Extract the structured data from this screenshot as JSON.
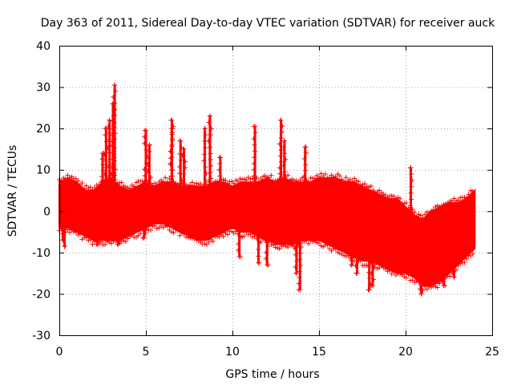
{
  "chart_data": {
    "type": "scatter",
    "title": "Day 363 of 2011, Sidereal Day-to-day VTEC variation (SDTVAR) for receiver auck",
    "xlabel": "GPS time / hours",
    "ylabel": "SDTVAR / TECUs",
    "xlim": [
      0,
      25
    ],
    "ylim": [
      -30,
      40
    ],
    "xticks": [
      0,
      5,
      10,
      15,
      20,
      25
    ],
    "yticks": [
      -30,
      -20,
      -10,
      0,
      10,
      20,
      30,
      40
    ],
    "xtick_labels": [
      "0",
      "5",
      "10",
      "15",
      "20",
      "25"
    ],
    "ytick_labels": [
      "-30",
      "-20",
      "-10",
      "0",
      "10",
      "20",
      "30",
      "40"
    ],
    "grid": true,
    "marker": "+",
    "series": [
      {
        "name": "SDTVAR",
        "color": "#ff0000",
        "envelope": {
          "x": [
            0,
            0.5,
            1,
            1.5,
            2,
            2.5,
            3,
            3.5,
            4,
            4.5,
            5,
            5.5,
            6,
            6.5,
            7,
            7.5,
            8,
            8.5,
            9,
            9.5,
            10,
            10.5,
            11,
            11.5,
            12,
            12.5,
            13,
            13.5,
            14,
            14.5,
            15,
            15.5,
            16,
            16.5,
            17,
            17.5,
            18,
            18.5,
            19,
            19.5,
            20,
            20.5,
            21,
            21.5,
            22,
            22.5,
            23,
            23.5,
            24
          ],
          "upper": [
            7,
            8,
            7,
            5,
            5,
            7,
            8,
            6,
            5,
            6,
            7,
            6,
            7,
            7,
            6,
            6,
            6,
            6,
            7,
            7,
            6,
            7,
            7,
            7,
            8,
            7,
            8,
            7,
            7,
            7,
            8,
            8,
            8,
            7,
            7,
            6,
            5,
            4,
            3,
            3,
            1,
            -1,
            -2,
            0,
            1,
            2,
            2,
            3,
            5
          ],
          "lower": [
            -4,
            -4,
            -5,
            -6,
            -7,
            -7,
            -7,
            -7,
            -6,
            -5,
            -4,
            -3,
            -3,
            -4,
            -5,
            -6,
            -7,
            -7,
            -6,
            -5,
            -4,
            -5,
            -5,
            -6,
            -7,
            -8,
            -8,
            -8,
            -7,
            -7,
            -7,
            -8,
            -9,
            -10,
            -11,
            -12,
            -12,
            -13,
            -14,
            -15,
            -15,
            -16,
            -18,
            -18,
            -17,
            -15,
            -13,
            -11,
            -9
          ]
        },
        "spikes": [
          {
            "x": 3.2,
            "y": 30.5
          },
          {
            "x": 3.1,
            "y": 26
          },
          {
            "x": 2.9,
            "y": 22
          },
          {
            "x": 2.7,
            "y": 20
          },
          {
            "x": 2.5,
            "y": 14
          },
          {
            "x": 5.0,
            "y": 19.5
          },
          {
            "x": 5.2,
            "y": 16
          },
          {
            "x": 6.5,
            "y": 22
          },
          {
            "x": 6.5,
            "y": 20
          },
          {
            "x": 7.0,
            "y": 17
          },
          {
            "x": 7.2,
            "y": 15
          },
          {
            "x": 8.4,
            "y": 20
          },
          {
            "x": 8.7,
            "y": 23
          },
          {
            "x": 9.3,
            "y": 13
          },
          {
            "x": 11.3,
            "y": 20.5
          },
          {
            "x": 12.8,
            "y": 22
          },
          {
            "x": 13.0,
            "y": 17
          },
          {
            "x": 14.2,
            "y": 15.5
          },
          {
            "x": 20.3,
            "y": 10.5
          },
          {
            "x": 0.2,
            "y": -7
          },
          {
            "x": 0.3,
            "y": -8.5
          },
          {
            "x": 2.2,
            "y": -8
          },
          {
            "x": 3.4,
            "y": -8
          },
          {
            "x": 4.9,
            "y": -6.5
          },
          {
            "x": 10.4,
            "y": -11
          },
          {
            "x": 11.5,
            "y": -12.5
          },
          {
            "x": 12.0,
            "y": -13
          },
          {
            "x": 13.7,
            "y": -15
          },
          {
            "x": 13.9,
            "y": -19
          },
          {
            "x": 16.9,
            "y": -13
          },
          {
            "x": 17.2,
            "y": -15
          },
          {
            "x": 17.9,
            "y": -19
          },
          {
            "x": 18.1,
            "y": -18
          },
          {
            "x": 20.9,
            "y": -20
          },
          {
            "x": 22.2,
            "y": -18
          },
          {
            "x": 22.8,
            "y": -16
          }
        ]
      }
    ]
  }
}
